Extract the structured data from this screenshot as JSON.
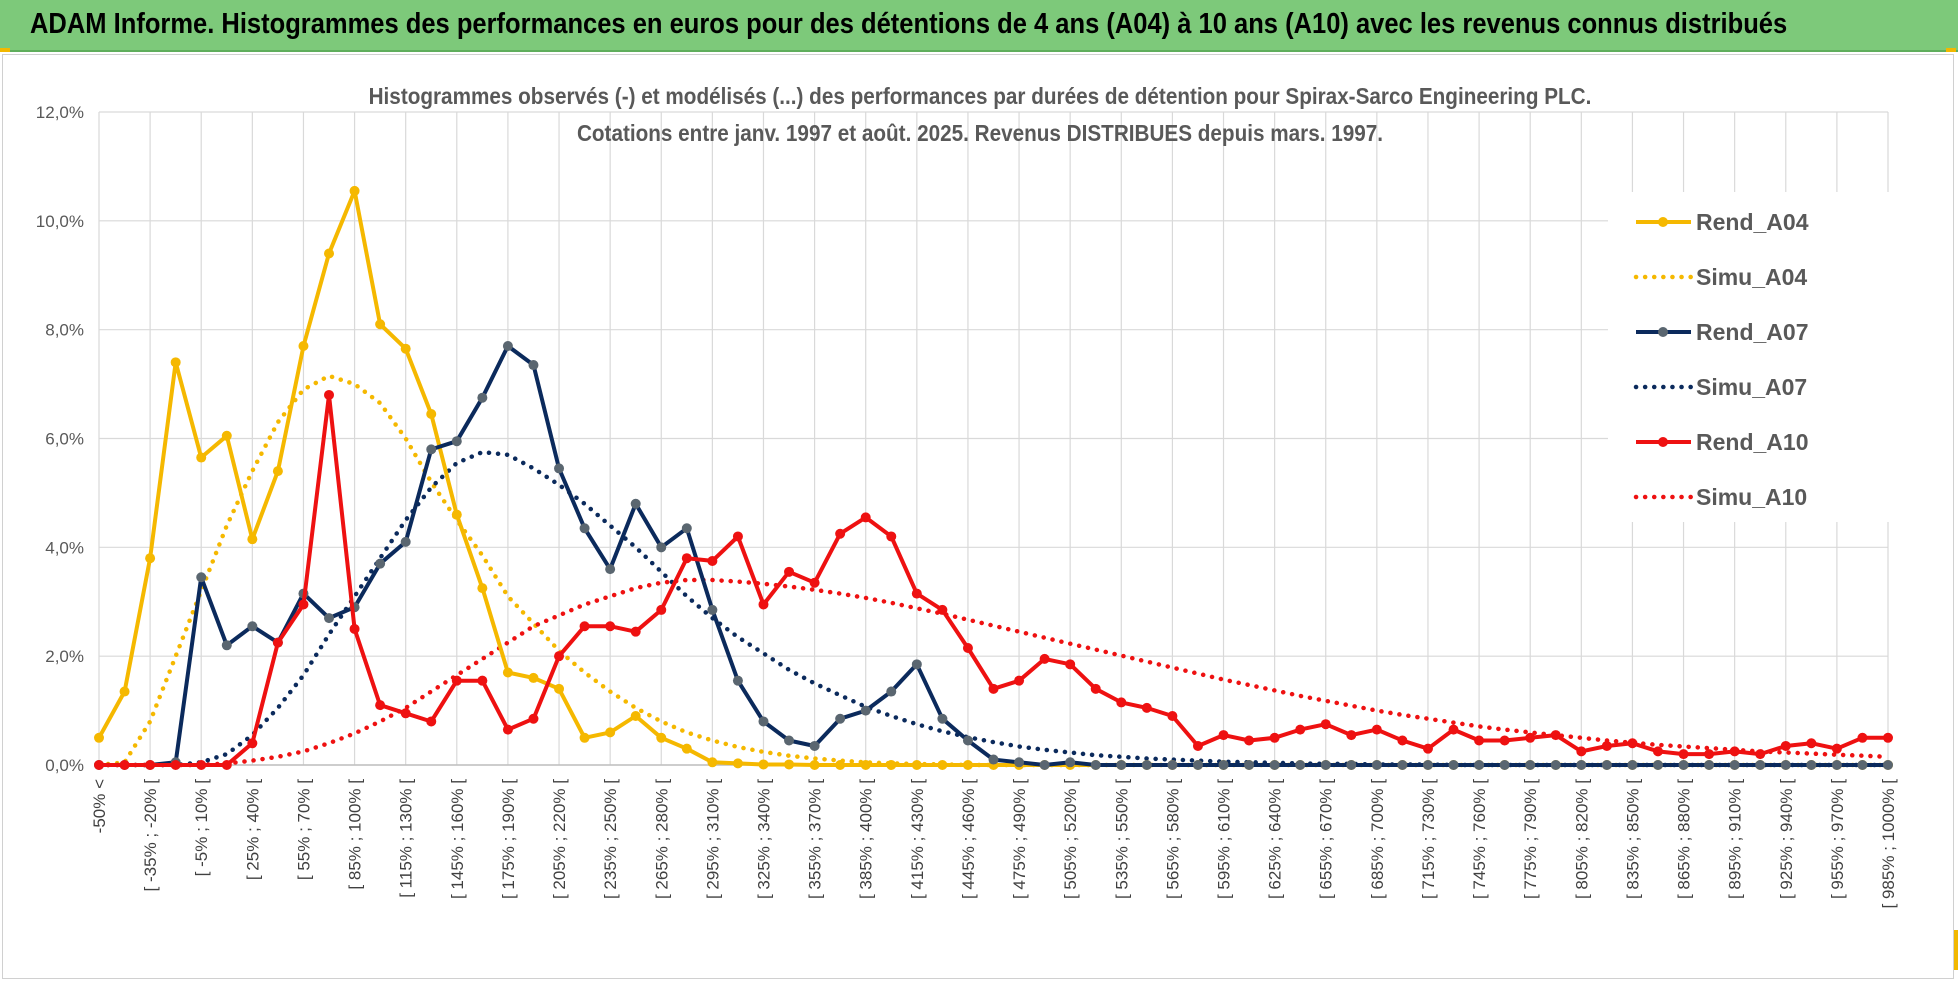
{
  "banner": {
    "title": "ADAM Informe. Histogrammes des performances en euros pour des détentions de 4 ans (A04) à 10 ans (A10) avec les revenus connus distribués"
  },
  "chart_data": {
    "type": "line",
    "title_line1": "Histogrammes observés (-) et modélisés (...) des performances par durées de détention pour Spirax-Sarco Engineering PLC.",
    "title_line2": "Cotations entre janv. 1997 et août. 2025. Revenus DISTRIBUES depuis mars. 1997.",
    "xlabel": "",
    "ylabel": "",
    "ylim": [
      0,
      0.12
    ],
    "yticks": [
      "0,0%",
      "2,0%",
      "4,0%",
      "6,0%",
      "8,0%",
      "10,0%",
      "12,0%"
    ],
    "grid": true,
    "legend_position": "right",
    "categories": [
      "-50% <",
      "[ -50% ; -45% [",
      "[ -35% ; -20% [",
      "[ -20% ; -5% [",
      "[ -5% ; 10% [",
      "[ 10% ; 25% [",
      "[ 25% ; 40% [",
      "[ 40% ; 55% [",
      "[ 55% ; 70% [",
      "[ 70% ; 85% [",
      "[ 85% ; 100% [",
      "[ 100% ; 115% [",
      "[ 115% ; 130% [",
      "[ 130% ; 145% [",
      "[ 145% ; 160% [",
      "[ 160% ; 175% [",
      "[ 175% ; 190% [",
      "[ 190% ; 205% [",
      "[ 205% ; 220% [",
      "[ 220% ; 235% [",
      "[ 235% ; 250% [",
      "[ 250% ; 265% [",
      "[ 265% ; 280% [",
      "[ 280% ; 295% [",
      "[ 295% ; 310% [",
      "[ 310% ; 325% [",
      "[ 325% ; 340% [",
      "[ 340% ; 355% [",
      "[ 355% ; 370% [",
      "[ 370% ; 385% [",
      "[ 385% ; 400% [",
      "[ 400% ; 415% [",
      "[ 415% ; 430% [",
      "[ 430% ; 445% [",
      "[ 445% ; 460% [",
      "[ 460% ; 475% [",
      "[ 475% ; 490% [",
      "[ 490% ; 505% [",
      "[ 505% ; 520% [",
      "[ 520% ; 535% [",
      "[ 535% ; 550% [",
      "[ 550% ; 565% [",
      "[ 565% ; 580% [",
      "[ 580% ; 595% [",
      "[ 595% ; 610% [",
      "[ 610% ; 625% [",
      "[ 625% ; 640% [",
      "[ 640% ; 655% [",
      "[ 655% ; 670% [",
      "[ 670% ; 685% [",
      "[ 685% ; 700% [",
      "[ 700% ; 715% [",
      "[ 715% ; 730% [",
      "[ 730% ; 745% [",
      "[ 745% ; 760% [",
      "[ 760% ; 775% [",
      "[ 775% ; 790% [",
      "[ 790% ; 805% [",
      "[ 805% ; 820% [",
      "[ 820% ; 835% [",
      "[ 835% ; 850% [",
      "[ 850% ; 865% [",
      "[ 865% ; 880% [",
      "[ 880% ; 895% [",
      "[ 895% ; 910% [",
      "[ 910% ; 925% [",
      "[ 925% ; 940% [",
      "[ 940% ; 955% [",
      "[ 955% ; 970% [",
      "[ 970% ; 985% [",
      "[ 985% ; 1000% ["
    ],
    "labeled_tick_step": 2,
    "series": [
      {
        "name": "Rend_A04",
        "style": "solid",
        "color": "#f5b800",
        "values": [
          0.005,
          0.0135,
          0.038,
          0.074,
          0.0565,
          0.0605,
          0.0415,
          0.054,
          0.077,
          0.094,
          0.1055,
          0.081,
          0.0765,
          0.0645,
          0.046,
          0.0325,
          0.017,
          0.016,
          0.014,
          0.005,
          0.006,
          0.009,
          0.005,
          0.003,
          0.0005,
          0.0003,
          0.0001,
          0.0001,
          0,
          0,
          0,
          0,
          0,
          0,
          0,
          0,
          0,
          0,
          0,
          0,
          0,
          0,
          0,
          0,
          0,
          0,
          0,
          0,
          0,
          0,
          0,
          0,
          0,
          0,
          0,
          0,
          0,
          0,
          0,
          0,
          0,
          0,
          0,
          0,
          0,
          0,
          0,
          0,
          0,
          0,
          0
        ]
      },
      {
        "name": "Simu_A04",
        "style": "dotted",
        "color": "#f5b800",
        "values": [
          0,
          0.0005,
          0.008,
          0.02,
          0.032,
          0.044,
          0.054,
          0.063,
          0.069,
          0.0715,
          0.07,
          0.0665,
          0.06,
          0.052,
          0.045,
          0.0385,
          0.031,
          0.026,
          0.021,
          0.017,
          0.0135,
          0.0105,
          0.008,
          0.006,
          0.0045,
          0.0033,
          0.0024,
          0.0017,
          0.0012,
          0.0008,
          0.0005,
          0.0003,
          0.0002,
          0.0001,
          0,
          0,
          0,
          0,
          0,
          0,
          0,
          0,
          0,
          0,
          0,
          0,
          0,
          0,
          0,
          0,
          0,
          0,
          0,
          0,
          0,
          0,
          0,
          0,
          0,
          0,
          0,
          0,
          0,
          0,
          0,
          0,
          0,
          0,
          0,
          0,
          0
        ]
      },
      {
        "name": "Rend_A07",
        "style": "solid",
        "color": "#0b2a5c",
        "values": [
          0,
          0,
          0,
          0.0005,
          0.0345,
          0.022,
          0.0255,
          0.0225,
          0.0315,
          0.027,
          0.029,
          0.037,
          0.041,
          0.058,
          0.0595,
          0.0675,
          0.077,
          0.0735,
          0.0545,
          0.0435,
          0.036,
          0.048,
          0.04,
          0.0435,
          0.0285,
          0.0155,
          0.008,
          0.0045,
          0.0035,
          0.0085,
          0.01,
          0.0135,
          0.0185,
          0.0085,
          0.0045,
          0.001,
          0.0005,
          0,
          0.0005,
          0,
          0,
          0,
          0,
          0,
          0,
          0,
          0,
          0,
          0,
          0,
          0,
          0,
          0,
          0,
          0,
          0,
          0,
          0,
          0,
          0,
          0,
          0,
          0,
          0,
          0,
          0,
          0,
          0,
          0,
          0,
          0
        ]
      },
      {
        "name": "Simu_A07",
        "style": "dotted",
        "color": "#0b2a5c",
        "values": [
          0,
          0,
          0,
          0,
          0.0005,
          0.002,
          0.0055,
          0.0105,
          0.0165,
          0.024,
          0.031,
          0.038,
          0.045,
          0.051,
          0.0555,
          0.0575,
          0.057,
          0.0545,
          0.0515,
          0.048,
          0.044,
          0.04,
          0.0355,
          0.031,
          0.027,
          0.0235,
          0.0205,
          0.0175,
          0.015,
          0.0128,
          0.0107,
          0.009,
          0.0075,
          0.0062,
          0.0051,
          0.0042,
          0.0034,
          0.0028,
          0.0023,
          0.0018,
          0.0015,
          0.0012,
          0.001,
          0.0008,
          0.0006,
          0.0005,
          0.0004,
          0.0003,
          0.0002,
          0.0002,
          0.0001,
          0.0001,
          0.0001,
          0,
          0,
          0,
          0,
          0,
          0,
          0,
          0,
          0,
          0,
          0,
          0,
          0,
          0,
          0,
          0,
          0,
          0
        ]
      },
      {
        "name": "Rend_A10",
        "style": "solid",
        "color": "#ee1111",
        "values": [
          0,
          0,
          0,
          0,
          0,
          0,
          0.004,
          0.0225,
          0.0295,
          0.068,
          0.025,
          0.011,
          0.0095,
          0.008,
          0.0155,
          0.0155,
          0.0065,
          0.0085,
          0.02,
          0.0255,
          0.0255,
          0.0245,
          0.0285,
          0.038,
          0.0375,
          0.042,
          0.0295,
          0.0355,
          0.0335,
          0.0425,
          0.0455,
          0.042,
          0.0315,
          0.0285,
          0.0215,
          0.014,
          0.0155,
          0.0195,
          0.0185,
          0.014,
          0.0115,
          0.0105,
          0.009,
          0.0035,
          0.0055,
          0.0045,
          0.005,
          0.0065,
          0.0075,
          0.0055,
          0.0065,
          0.0045,
          0.003,
          0.0065,
          0.0045,
          0.0045,
          0.005,
          0.0055,
          0.0025,
          0.0035,
          0.004,
          0.0025,
          0.002,
          0.002,
          0.0025,
          0.002,
          0.0035,
          0.004,
          0.003,
          0.005,
          0.005
        ]
      },
      {
        "name": "Simu_A10",
        "style": "dotted",
        "color": "#ee1111",
        "values": [
          0,
          0,
          0,
          0,
          0,
          0.0003,
          0.0008,
          0.0015,
          0.0025,
          0.004,
          0.0058,
          0.008,
          0.0105,
          0.0135,
          0.0165,
          0.0195,
          0.0225,
          0.0255,
          0.0275,
          0.0295,
          0.031,
          0.0325,
          0.0335,
          0.034,
          0.034,
          0.0337,
          0.0333,
          0.0328,
          0.0322,
          0.0315,
          0.0307,
          0.0298,
          0.0288,
          0.0278,
          0.0267,
          0.0256,
          0.0245,
          0.0234,
          0.0223,
          0.0212,
          0.0201,
          0.019,
          0.0179,
          0.0168,
          0.0157,
          0.0147,
          0.0137,
          0.0127,
          0.0118,
          0.0109,
          0.01,
          0.0092,
          0.0085,
          0.0078,
          0.0071,
          0.0065,
          0.006,
          0.0055,
          0.005,
          0.0045,
          0.0041,
          0.0037,
          0.0034,
          0.0031,
          0.0028,
          0.0025,
          0.0023,
          0.0021,
          0.0019,
          0.0017,
          0.0015
        ]
      }
    ]
  }
}
